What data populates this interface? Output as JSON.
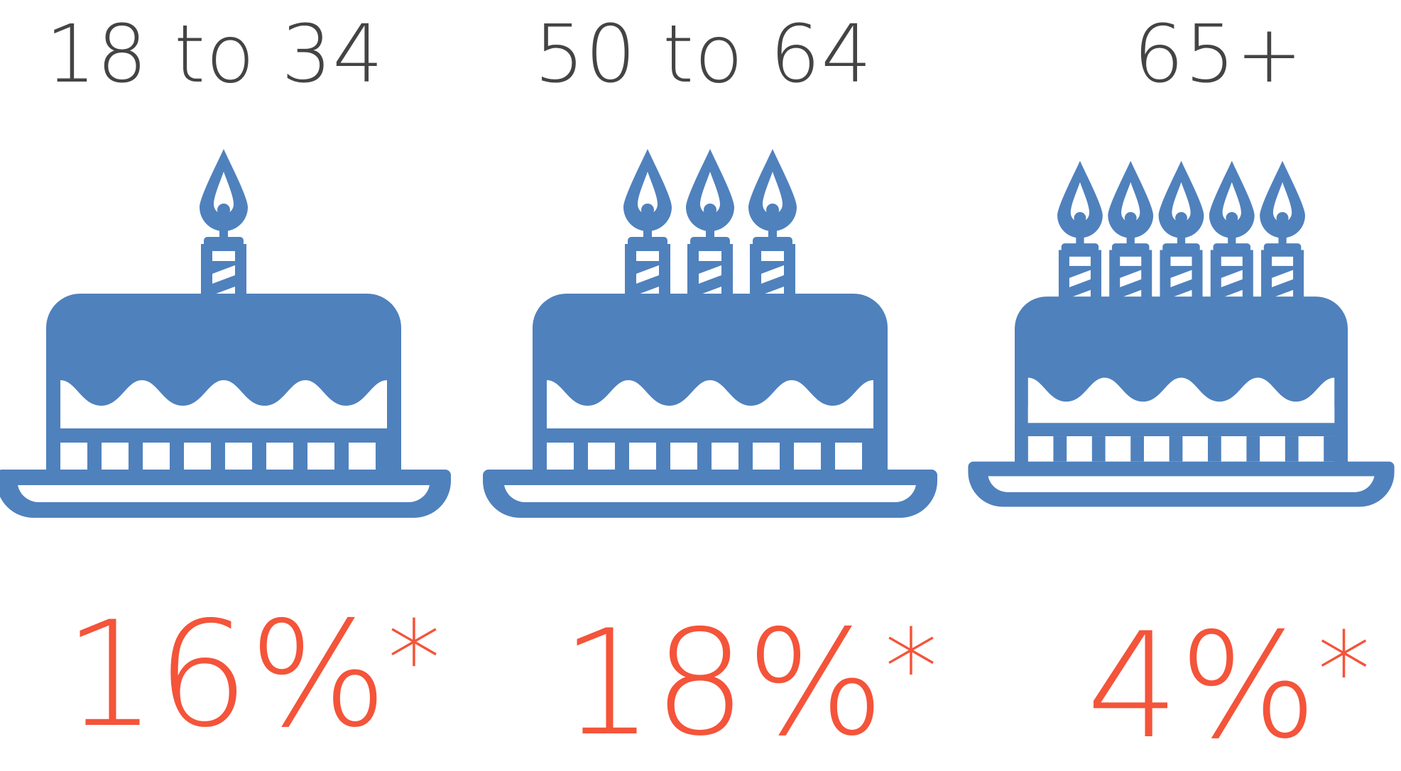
{
  "colors": {
    "cake": "#4f81bd",
    "percent": "#f4543a",
    "label": "#444444"
  },
  "groups": [
    {
      "age_label": "18 to 34",
      "candles": 1,
      "percent": "16%",
      "footnote_mark": "*"
    },
    {
      "age_label": "50 to 64",
      "candles": 3,
      "percent": "18%",
      "footnote_mark": "*"
    },
    {
      "age_label": "65+",
      "candles": 5,
      "percent": "4%",
      "footnote_mark": "*"
    }
  ]
}
